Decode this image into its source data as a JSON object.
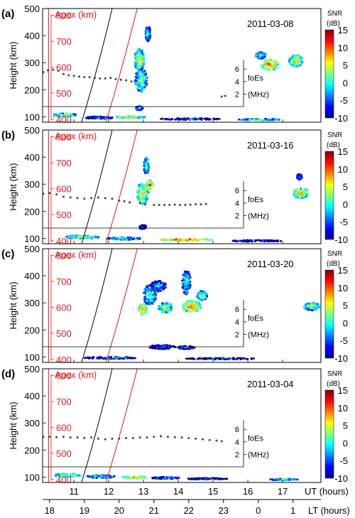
{
  "chart_data": {
    "type": "heatmap",
    "panels": [
      {
        "letter": "(a)",
        "date": "2011-03-08",
        "foEs": [
          [
            10.12,
            5.5
          ],
          [
            10.25,
            5.8
          ],
          [
            10.4,
            5.9
          ],
          [
            10.55,
            5.7
          ],
          [
            10.7,
            5.2
          ],
          [
            10.85,
            5.0
          ],
          [
            11.0,
            4.9
          ],
          [
            11.15,
            4.8
          ],
          [
            11.3,
            4.7
          ],
          [
            11.45,
            4.7
          ],
          [
            11.6,
            4.6
          ],
          [
            11.75,
            4.5
          ],
          [
            11.9,
            4.5
          ],
          [
            12.05,
            4.6
          ],
          [
            12.2,
            4.4
          ],
          [
            12.35,
            4.3
          ],
          [
            12.5,
            4.2
          ],
          [
            12.65,
            4.0
          ],
          [
            12.75,
            4.1
          ],
          [
            15.25,
            1.6
          ],
          [
            15.35,
            1.7
          ]
        ],
        "snr_blobs": [
          {
            "ut": 12.9,
            "h": 240,
            "du": 0.35,
            "dh": 90,
            "snr": 4
          },
          {
            "ut": 12.85,
            "h": 315,
            "du": 0.3,
            "dh": 80,
            "snr": 6
          },
          {
            "ut": 13.1,
            "h": 410,
            "du": 0.15,
            "dh": 55,
            "snr": 2
          },
          {
            "ut": 16.6,
            "h": 295,
            "du": 0.5,
            "dh": 40,
            "snr": 10
          },
          {
            "ut": 17.35,
            "h": 310,
            "du": 0.4,
            "dh": 45,
            "snr": 7
          },
          {
            "ut": 16.35,
            "h": 330,
            "du": 0.3,
            "dh": 25,
            "snr": 3
          },
          {
            "ut": 12.85,
            "h": 135,
            "du": 0.2,
            "dh": 15,
            "snr": 0
          },
          {
            "ut": 10.7,
            "h": 110,
            "du": 0.7,
            "dh": 12,
            "snr": 5
          },
          {
            "ut": 11.7,
            "h": 100,
            "du": 0.8,
            "dh": 10,
            "snr": -1
          },
          {
            "ut": 12.6,
            "h": 102,
            "du": 0.9,
            "dh": 8,
            "snr": 8
          },
          {
            "ut": 14.3,
            "h": 95,
            "du": 1.8,
            "dh": 6,
            "snr": -3
          },
          {
            "ut": 16.3,
            "h": 93,
            "du": 1.2,
            "dh": 6,
            "snr": 4
          }
        ]
      },
      {
        "letter": "(b)",
        "date": "2011-03-16",
        "foEs": [
          [
            10.12,
            5.5
          ],
          [
            10.3,
            5.6
          ],
          [
            10.5,
            5.4
          ],
          [
            10.7,
            5.0
          ],
          [
            10.9,
            4.9
          ],
          [
            11.1,
            4.8
          ],
          [
            11.3,
            4.7
          ],
          [
            11.5,
            4.8
          ],
          [
            11.7,
            4.9
          ],
          [
            11.9,
            4.8
          ],
          [
            12.1,
            4.7
          ],
          [
            12.3,
            4.4
          ],
          [
            12.45,
            4.3
          ],
          [
            12.6,
            4.1
          ],
          [
            12.9,
            4.0
          ],
          [
            13.05,
            3.8
          ],
          [
            13.3,
            3.7
          ],
          [
            13.45,
            3.7
          ],
          [
            13.6,
            3.7
          ],
          [
            13.75,
            3.7
          ],
          [
            13.9,
            3.75
          ],
          [
            14.05,
            3.7
          ],
          [
            14.2,
            3.7
          ],
          [
            14.35,
            3.75
          ],
          [
            14.5,
            3.8
          ],
          [
            14.65,
            3.8
          ],
          [
            14.8,
            3.85
          ]
        ],
        "snr_blobs": [
          {
            "ut": 12.95,
            "h": 270,
            "du": 0.35,
            "dh": 80,
            "snr": 7
          },
          {
            "ut": 13.05,
            "h": 370,
            "du": 0.15,
            "dh": 60,
            "snr": 3
          },
          {
            "ut": 13.15,
            "h": 300,
            "du": 0.2,
            "dh": 35,
            "snr": 10
          },
          {
            "ut": 17.5,
            "h": 270,
            "du": 0.45,
            "dh": 40,
            "snr": 8
          },
          {
            "ut": 17.45,
            "h": 330,
            "du": 0.15,
            "dh": 20,
            "snr": 1
          },
          {
            "ut": 12.95,
            "h": 145,
            "du": 0.2,
            "dh": 15,
            "snr": -2
          },
          {
            "ut": 11.2,
            "h": 108,
            "du": 1.0,
            "dh": 12,
            "snr": 5
          },
          {
            "ut": 12.4,
            "h": 102,
            "du": 1.0,
            "dh": 10,
            "snr": 3
          },
          {
            "ut": 14.2,
            "h": 98,
            "du": 1.5,
            "dh": 8,
            "snr": 12
          },
          {
            "ut": 16.2,
            "h": 94,
            "du": 1.5,
            "dh": 6,
            "snr": -4
          }
        ]
      },
      {
        "letter": "(c)",
        "date": "2011-03-20",
        "foEs": [],
        "snr_blobs": [
          {
            "ut": 13.15,
            "h": 330,
            "du": 0.35,
            "dh": 80,
            "snr": 3
          },
          {
            "ut": 12.95,
            "h": 280,
            "du": 0.25,
            "dh": 40,
            "snr": 9
          },
          {
            "ut": 13.4,
            "h": 365,
            "du": 0.45,
            "dh": 40,
            "snr": 0
          },
          {
            "ut": 13.6,
            "h": 285,
            "du": 0.4,
            "dh": 40,
            "snr": 6
          },
          {
            "ut": 14.2,
            "h": 380,
            "du": 0.25,
            "dh": 90,
            "snr": 2
          },
          {
            "ut": 14.35,
            "h": 290,
            "du": 0.55,
            "dh": 45,
            "snr": 9
          },
          {
            "ut": 14.65,
            "h": 330,
            "du": 0.3,
            "dh": 35,
            "snr": 5
          },
          {
            "ut": 17.8,
            "h": 290,
            "du": 0.45,
            "dh": 30,
            "snr": 4
          },
          {
            "ut": 13.5,
            "h": 140,
            "du": 0.8,
            "dh": 15,
            "snr": -2
          },
          {
            "ut": 14.2,
            "h": 138,
            "du": 0.5,
            "dh": 12,
            "snr": 0
          },
          {
            "ut": 12.0,
            "h": 100,
            "du": 1.5,
            "dh": 8,
            "snr": -1
          },
          {
            "ut": 15.2,
            "h": 97,
            "du": 2.0,
            "dh": 6,
            "snr": -3
          }
        ]
      },
      {
        "letter": "(d)",
        "date": "2011-03-04",
        "foEs": [
          [
            10.12,
            4.8
          ],
          [
            10.3,
            4.8
          ],
          [
            10.5,
            4.75
          ],
          [
            10.7,
            4.8
          ],
          [
            10.9,
            4.7
          ],
          [
            11.1,
            4.7
          ],
          [
            11.3,
            4.6
          ],
          [
            11.5,
            4.7
          ],
          [
            11.7,
            4.5
          ],
          [
            11.9,
            4.4
          ],
          [
            12.1,
            4.5
          ],
          [
            12.3,
            4.5
          ],
          [
            12.5,
            4.6
          ],
          [
            12.7,
            4.6
          ],
          [
            12.9,
            4.7
          ],
          [
            13.1,
            4.7
          ],
          [
            13.3,
            4.8
          ],
          [
            13.5,
            4.9
          ],
          [
            13.7,
            4.8
          ],
          [
            13.9,
            4.75
          ],
          [
            14.1,
            4.7
          ],
          [
            14.3,
            4.6
          ],
          [
            14.5,
            4.5
          ],
          [
            14.7,
            4.4
          ],
          [
            14.9,
            4.3
          ],
          [
            15.1,
            4.2
          ],
          [
            15.25,
            4.1
          ]
        ],
        "snr_blobs": [
          {
            "ut": 10.8,
            "h": 110,
            "du": 0.8,
            "dh": 12,
            "snr": 6
          },
          {
            "ut": 11.8,
            "h": 105,
            "du": 0.9,
            "dh": 10,
            "snr": 2
          },
          {
            "ut": 12.7,
            "h": 102,
            "du": 0.7,
            "dh": 9,
            "snr": 9
          },
          {
            "ut": 13.6,
            "h": 100,
            "du": 0.8,
            "dh": 8,
            "snr": 0
          },
          {
            "ut": 14.8,
            "h": 97,
            "du": 1.2,
            "dh": 6,
            "snr": -3
          },
          {
            "ut": 17.0,
            "h": 94,
            "du": 0.8,
            "dh": 6,
            "snr": 3
          }
        ]
      }
    ],
    "height_axis": {
      "label": "Height (km)",
      "ylim": [
        80,
        500
      ],
      "ticks": [
        100,
        200,
        300,
        400,
        500
      ]
    },
    "apex_axis": {
      "label": "Apex (km)",
      "ticks": [
        400,
        500,
        600,
        700,
        800
      ],
      "apex_at": {
        "400": 91,
        "500": 188,
        "600": 283,
        "700": 379,
        "800": 475
      }
    },
    "foEs_axis": {
      "label": "foEs",
      "unit": "(MHz)",
      "ticks": [
        2,
        4,
        6
      ],
      "range": [
        0,
        7.5
      ]
    },
    "ut_axis": {
      "label": "UT (hours)",
      "xlim": [
        10.1,
        18.1
      ],
      "ticks": [
        11,
        12,
        13,
        14,
        15,
        16,
        17
      ]
    },
    "lt_axis": {
      "label": "LT (hours)",
      "ticks": [
        "18",
        "19",
        "20",
        "21",
        "22",
        "23",
        "0",
        "1"
      ],
      "ut_of_ticks": [
        10.3,
        11.3,
        12.3,
        13.3,
        14.3,
        15.3,
        16.3,
        17.3
      ]
    },
    "black_curve": [
      [
        11.22,
        80
      ],
      [
        11.65,
        260
      ],
      [
        12.1,
        500
      ]
    ],
    "red_curve": [
      [
        11.92,
        80
      ],
      [
        12.35,
        260
      ],
      [
        12.82,
        500
      ]
    ],
    "red_vertical_ut": 10.27,
    "colorbar": {
      "title": "SNR",
      "unit": "(dB)",
      "range": [
        -10,
        15
      ],
      "ticks": [
        -10,
        -5,
        0,
        5,
        10,
        15
      ]
    },
    "colors": {
      "apex": "#e8141b",
      "black_curve": "#000000",
      "foEs": "#444444"
    }
  }
}
